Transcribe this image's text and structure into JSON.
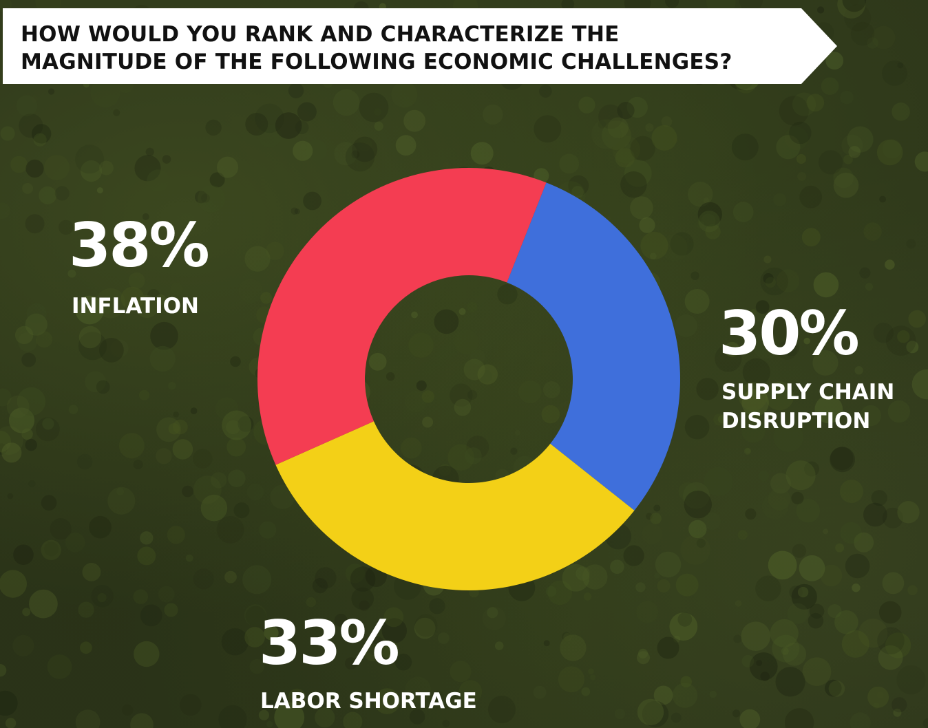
{
  "title": {
    "line1": "HOW WOULD YOU RANK AND CHARACTERIZE THE",
    "line2": "MAGNITUDE OF THE FOLLOWING ECONOMIC CHALLENGES?"
  },
  "colors": {
    "inflation": "#f43d52",
    "supply_chain": "#3f6fdb",
    "labor": "#f3d017",
    "banner": "#ffffff",
    "text": "#ffffff"
  },
  "chart_data": {
    "type": "pie",
    "donut": true,
    "slices": [
      {
        "label_lines": [
          "SUPPLY CHAIN",
          "DISRUPTION"
        ],
        "value": 30,
        "value_label": "30%",
        "color": "#3f6fdb"
      },
      {
        "label_lines": [
          "LABOR SHORTAGE"
        ],
        "value": 33,
        "value_label": "33%",
        "color": "#f3d017"
      },
      {
        "label_lines": [
          "INFLATION"
        ],
        "value": 38,
        "value_label": "38%",
        "color": "#f43d52"
      }
    ]
  }
}
